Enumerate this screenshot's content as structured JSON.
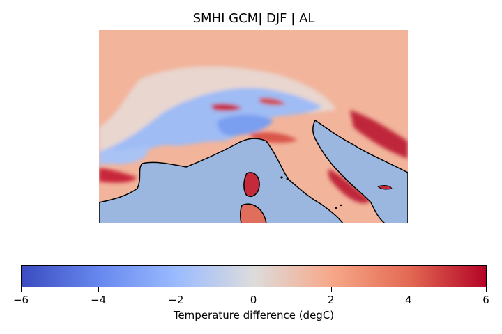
{
  "title": "SMHI GCM| DJF | AL",
  "map": {
    "sea_color": "#9bb7e0",
    "coast_color": "#000000",
    "field_palette": [
      "#3b4cc0",
      "#9abbff",
      "#dddcdc",
      "#f7a889",
      "#b40426"
    ]
  },
  "colorbar": {
    "label": "Temperature difference (degC)",
    "colormap": "coolwarm",
    "range": [
      -6,
      6
    ],
    "ticks": [
      "−6",
      "−4",
      "−2",
      "0",
      "2",
      "4",
      "6"
    ]
  }
}
